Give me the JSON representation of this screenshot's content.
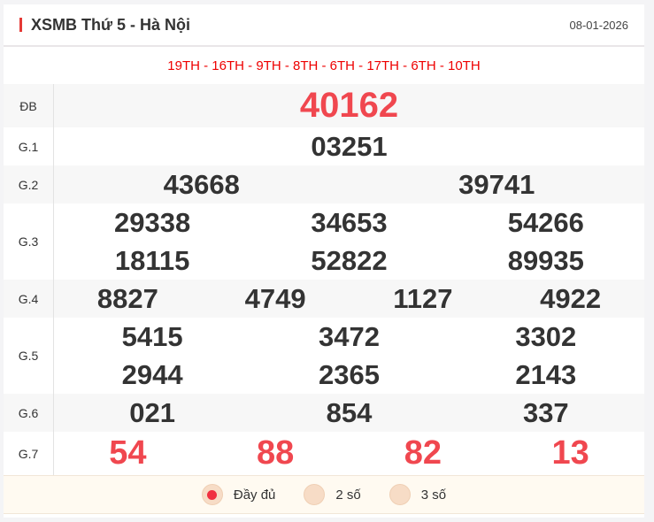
{
  "header": {
    "title": "XSMB Thứ 5 - Hà Nội",
    "date": "08-01-2026"
  },
  "codes": "19TH - 16TH - 9TH - 8TH - 6TH - 17TH - 6TH - 10TH",
  "prizes": [
    {
      "label": "ĐB",
      "numbers": [
        "40162"
      ]
    },
    {
      "label": "G.1",
      "numbers": [
        "03251"
      ]
    },
    {
      "label": "G.2",
      "numbers": [
        "43668",
        "39741"
      ]
    },
    {
      "label": "G.3",
      "numbers": [
        "29338",
        "34653",
        "54266",
        "18115",
        "52822",
        "89935"
      ]
    },
    {
      "label": "G.4",
      "numbers": [
        "8827",
        "4749",
        "1127",
        "4922"
      ]
    },
    {
      "label": "G.5",
      "numbers": [
        "5415",
        "3472",
        "3302",
        "2944",
        "2365",
        "2143"
      ]
    },
    {
      "label": "G.6",
      "numbers": [
        "021",
        "854",
        "337"
      ]
    },
    {
      "label": "G.7",
      "numbers": [
        "54",
        "88",
        "82",
        "13"
      ]
    }
  ],
  "footer": {
    "options": [
      "Đầy đủ",
      "2 số",
      "3 số"
    ],
    "selected": "Đầy đủ"
  },
  "colors": {
    "accent": "#e53935",
    "highlight": "#f0474f"
  }
}
